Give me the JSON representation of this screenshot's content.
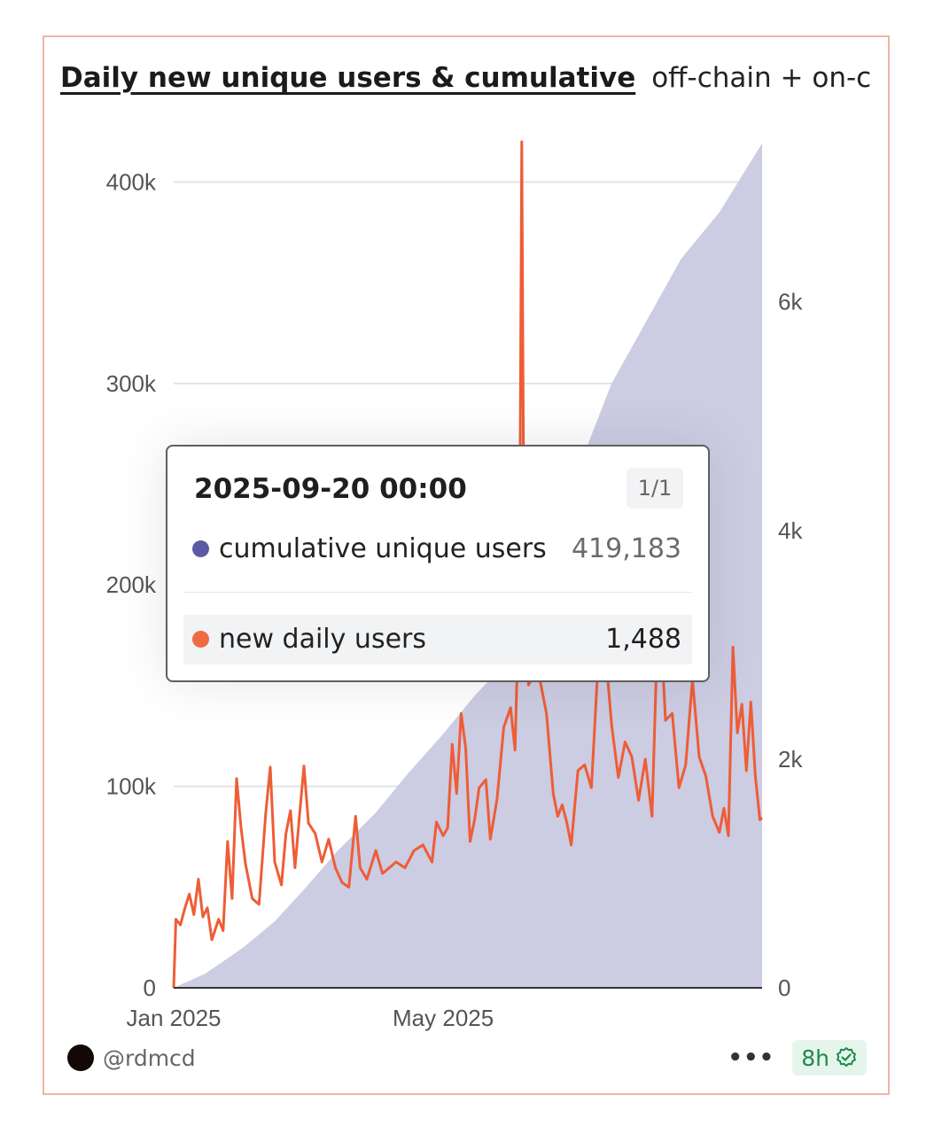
{
  "header": {
    "title": "Daily new unique users & cumulative",
    "subtitle": "off-chain + on-chain…"
  },
  "tooltip": {
    "date": "2025-09-20 00:00",
    "page": "1/1",
    "rows": [
      {
        "label": "cumulative unique users",
        "value": "419,183",
        "color": "#5b5ba3"
      },
      {
        "label": "new daily users",
        "value": "1,488",
        "color": "#ee6a43"
      }
    ]
  },
  "footer": {
    "handle": "@rdmcd",
    "more": "•••",
    "age": "8h"
  },
  "colors": {
    "cumulative_fill": "#c9c9e1",
    "daily_line": "#ee5d36",
    "card_border": "#f2b4a3",
    "badge_green": "#1e8a4e"
  },
  "chart_data": {
    "type": "area",
    "x_axis": {
      "ticks": [
        "Jan 2025",
        "May 2025"
      ],
      "range": [
        "2025-01-01",
        "2025-09-20"
      ]
    },
    "y_left": {
      "ticks": [
        "0",
        "100k",
        "200k",
        "300k",
        "400k"
      ],
      "range": [
        0,
        420000
      ],
      "series": "cumulative unique users"
    },
    "y_right": {
      "ticks": [
        "0",
        "2k",
        "4k",
        "6k"
      ],
      "range": [
        0,
        7400
      ],
      "series": "new daily users"
    },
    "grid": true,
    "series": [
      {
        "name": "cumulative unique users",
        "type": "area",
        "color": "#c9c9e1",
        "axis": "left",
        "points": [
          [
            "2025-01-01",
            0
          ],
          [
            "2025-01-15",
            7000
          ],
          [
            "2025-02-01",
            20000
          ],
          [
            "2025-02-15",
            33000
          ],
          [
            "2025-03-01",
            50000
          ],
          [
            "2025-03-15",
            68000
          ],
          [
            "2025-04-01",
            87000
          ],
          [
            "2025-04-15",
            106000
          ],
          [
            "2025-05-01",
            126000
          ],
          [
            "2025-05-15",
            145000
          ],
          [
            "2025-06-01",
            165000
          ],
          [
            "2025-06-15",
            186000
          ],
          [
            "2025-07-01",
            260000
          ],
          [
            "2025-07-15",
            300000
          ],
          [
            "2025-08-01",
            334000
          ],
          [
            "2025-08-15",
            362000
          ],
          [
            "2025-09-01",
            385000
          ],
          [
            "2025-09-20",
            419183
          ]
        ]
      },
      {
        "name": "new daily users",
        "type": "line",
        "color": "#ee5d36",
        "axis": "right",
        "points": [
          [
            "2025-01-01",
            0
          ],
          [
            "2025-01-02",
            600
          ],
          [
            "2025-01-04",
            550
          ],
          [
            "2025-01-06",
            700
          ],
          [
            "2025-01-08",
            820
          ],
          [
            "2025-01-10",
            640
          ],
          [
            "2025-01-12",
            950
          ],
          [
            "2025-01-14",
            620
          ],
          [
            "2025-01-16",
            700
          ],
          [
            "2025-01-18",
            420
          ],
          [
            "2025-01-21",
            600
          ],
          [
            "2025-01-23",
            500
          ],
          [
            "2025-01-25",
            1280
          ],
          [
            "2025-01-27",
            780
          ],
          [
            "2025-01-29",
            1830
          ],
          [
            "2025-01-31",
            1400
          ],
          [
            "2025-02-02",
            1080
          ],
          [
            "2025-02-05",
            780
          ],
          [
            "2025-02-08",
            730
          ],
          [
            "2025-02-11",
            1530
          ],
          [
            "2025-02-13",
            1930
          ],
          [
            "2025-02-15",
            1100
          ],
          [
            "2025-02-18",
            900
          ],
          [
            "2025-02-20",
            1350
          ],
          [
            "2025-02-22",
            1550
          ],
          [
            "2025-02-24",
            1050
          ],
          [
            "2025-02-26",
            1500
          ],
          [
            "2025-02-28",
            1940
          ],
          [
            "2025-03-02",
            1440
          ],
          [
            "2025-03-05",
            1350
          ],
          [
            "2025-03-08",
            1100
          ],
          [
            "2025-03-11",
            1300
          ],
          [
            "2025-03-14",
            1050
          ],
          [
            "2025-03-17",
            920
          ],
          [
            "2025-03-20",
            880
          ],
          [
            "2025-03-23",
            1500
          ],
          [
            "2025-03-25",
            1050
          ],
          [
            "2025-03-28",
            950
          ],
          [
            "2025-04-01",
            1200
          ],
          [
            "2025-04-04",
            1000
          ],
          [
            "2025-04-07",
            1050
          ],
          [
            "2025-04-10",
            1100
          ],
          [
            "2025-04-14",
            1050
          ],
          [
            "2025-04-18",
            1200
          ],
          [
            "2025-04-22",
            1250
          ],
          [
            "2025-04-26",
            1100
          ],
          [
            "2025-04-28",
            1450
          ],
          [
            "2025-05-01",
            1330
          ],
          [
            "2025-05-03",
            1400
          ],
          [
            "2025-05-05",
            2130
          ],
          [
            "2025-05-07",
            1700
          ],
          [
            "2025-05-09",
            2400
          ],
          [
            "2025-05-11",
            2100
          ],
          [
            "2025-05-13",
            1280
          ],
          [
            "2025-05-15",
            1470
          ],
          [
            "2025-05-17",
            1750
          ],
          [
            "2025-05-20",
            1820
          ],
          [
            "2025-05-22",
            1300
          ],
          [
            "2025-05-25",
            1650
          ],
          [
            "2025-05-28",
            2280
          ],
          [
            "2025-05-31",
            2450
          ],
          [
            "2025-06-02",
            2080
          ],
          [
            "2025-06-04",
            3600
          ],
          [
            "2025-06-05",
            7400
          ],
          [
            "2025-06-06",
            3600
          ],
          [
            "2025-06-08",
            2650
          ],
          [
            "2025-06-12",
            2800
          ],
          [
            "2025-06-16",
            2400
          ],
          [
            "2025-06-19",
            1700
          ],
          [
            "2025-06-21",
            1500
          ],
          [
            "2025-06-23",
            1600
          ],
          [
            "2025-06-25",
            1450
          ],
          [
            "2025-06-27",
            1250
          ],
          [
            "2025-06-30",
            1900
          ],
          [
            "2025-07-03",
            1950
          ],
          [
            "2025-07-06",
            1750
          ],
          [
            "2025-07-09",
            2850
          ],
          [
            "2025-07-12",
            3000
          ],
          [
            "2025-07-15",
            2300
          ],
          [
            "2025-07-18",
            1840
          ],
          [
            "2025-07-21",
            2150
          ],
          [
            "2025-07-24",
            2020
          ],
          [
            "2025-07-27",
            1640
          ],
          [
            "2025-07-30",
            2000
          ],
          [
            "2025-08-02",
            1500
          ],
          [
            "2025-08-05",
            3500
          ],
          [
            "2025-08-08",
            2340
          ],
          [
            "2025-08-11",
            2400
          ],
          [
            "2025-08-14",
            1750
          ],
          [
            "2025-08-17",
            1950
          ],
          [
            "2025-08-20",
            2700
          ],
          [
            "2025-08-23",
            2020
          ],
          [
            "2025-08-26",
            1850
          ],
          [
            "2025-08-29",
            1500
          ],
          [
            "2025-09-01",
            1360
          ],
          [
            "2025-09-03",
            1570
          ],
          [
            "2025-09-05",
            1330
          ],
          [
            "2025-09-07",
            2980
          ],
          [
            "2025-09-09",
            2230
          ],
          [
            "2025-09-11",
            2480
          ],
          [
            "2025-09-13",
            1900
          ],
          [
            "2025-09-15",
            2500
          ],
          [
            "2025-09-17",
            1850
          ],
          [
            "2025-09-19",
            1470
          ],
          [
            "2025-09-20",
            1488
          ]
        ]
      }
    ]
  }
}
